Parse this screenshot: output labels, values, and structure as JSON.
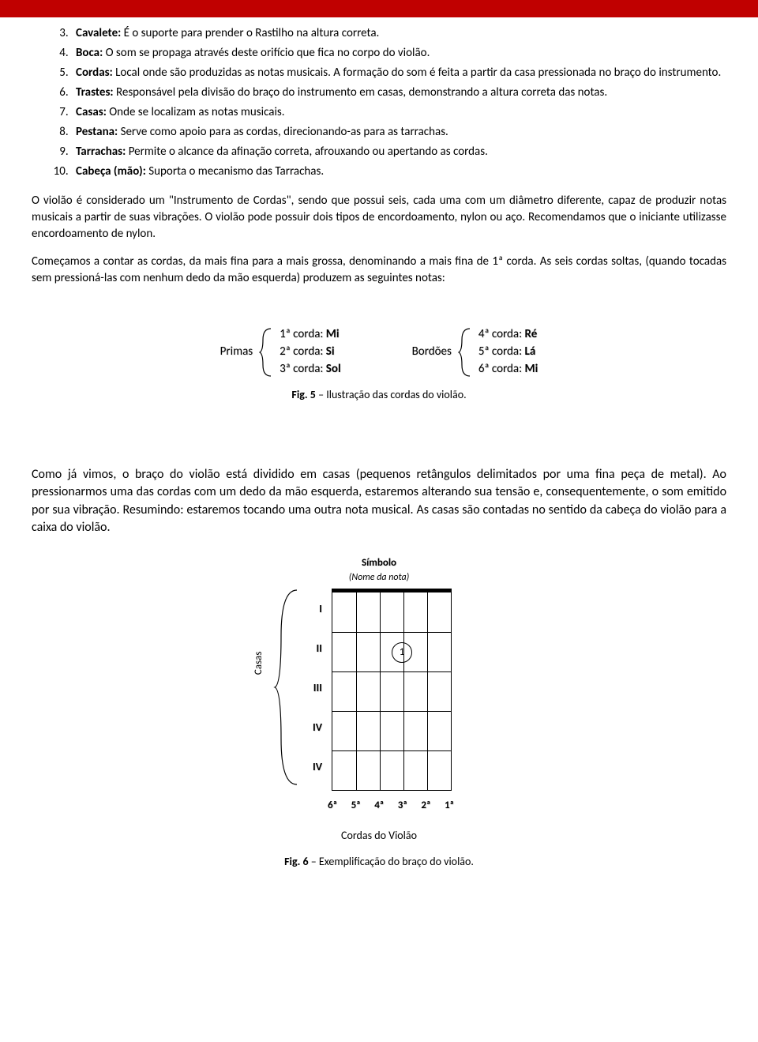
{
  "colors": {
    "topbar": "#c00000",
    "text": "#000000",
    "bg": "#ffffff"
  },
  "definitions": {
    "start": 3,
    "items": [
      {
        "term": "Cavalete:",
        "desc": " É o suporte para prender o Rastilho na altura correta."
      },
      {
        "term": "Boca:",
        "desc": " O som se propaga através deste orifício que fica no corpo do violão."
      },
      {
        "term": "Cordas:",
        "desc": " Local onde são produzidas as notas musicais. A formação do som é feita a  partir da casa pressionada no braço do instrumento."
      },
      {
        "term": "Trastes:",
        "desc": " Responsável pela divisão do braço do instrumento em casas, demonstrando a altura correta das notas."
      },
      {
        "term": "Casas:",
        "desc": " Onde se localizam as notas musicais."
      },
      {
        "term": "Pestana:",
        "desc": " Serve como apoio para as cordas, direcionando-as para as tarrachas."
      },
      {
        "term": "Tarrachas:",
        "desc": " Permite o alcance da afinação correta, afrouxando ou apertando as cordas."
      },
      {
        "term": "Cabeça (mão):",
        "desc": " Suporta o mecanismo das Tarrachas."
      }
    ]
  },
  "para1": "O violão é considerado um \"Instrumento de Cordas\", sendo que possui seis, cada uma com um diâmetro diferente, capaz de produzir notas musicais a partir de suas vibrações. O violão pode possuir dois tipos de encordoamento, nylon ou aço. Recomendamos que o iniciante utilizasse encordoamento de nylon.",
  "para2": "Começamos a contar as cordas, da mais fina para a mais grossa, denominando a mais fina de 1ª corda. As seis cordas soltas, (quando tocadas sem pressioná-las com nenhum dedo da mão esquerda) produzem as seguintes notas:",
  "fig5": {
    "groups": [
      {
        "label": "Primas",
        "lines": [
          {
            "pre": "1ª corda: ",
            "note": "Mi"
          },
          {
            "pre": "2ª corda: ",
            "note": "Si"
          },
          {
            "pre": "3ª corda: ",
            "note": "Sol"
          }
        ]
      },
      {
        "label": "Bordões",
        "lines": [
          {
            "pre": "4ª corda: ",
            "note": "Ré"
          },
          {
            "pre": "5ª corda: ",
            "note": "Lá"
          },
          {
            "pre": "6ª corda: ",
            "note": "Mi"
          }
        ]
      }
    ],
    "caption_b": "Fig. 5",
    "caption_rest": " – Ilustração das cordas do violão."
  },
  "para3": "Como já vimos, o braço do violão está dividido em casas (pequenos retângulos delimitados por uma fina peça de metal). Ao pressionarmos uma das cordas com um dedo da mão esquerda, estaremos alterando sua tensão e, consequentemente, o som emitido por sua vibração. Resumindo: estaremos tocando uma outra nota musical. As casas são contadas no sentido da cabeça do violão para a caixa do violão.",
  "fig6": {
    "symhead": "Símbolo",
    "symsub": "(Nome da nota)",
    "casas_label": "Casas",
    "romans": [
      "I",
      "II",
      "III",
      "IV",
      "IV"
    ],
    "strings_reversed": [
      "6ª",
      "5ª",
      "4ª",
      "3ª",
      "2ª",
      "1ª"
    ],
    "cords_label": "Cordas do Violão",
    "dot_value": "1",
    "caption_b": "Fig. 6",
    "caption_rest": " – Exemplificação do braço do violão."
  }
}
